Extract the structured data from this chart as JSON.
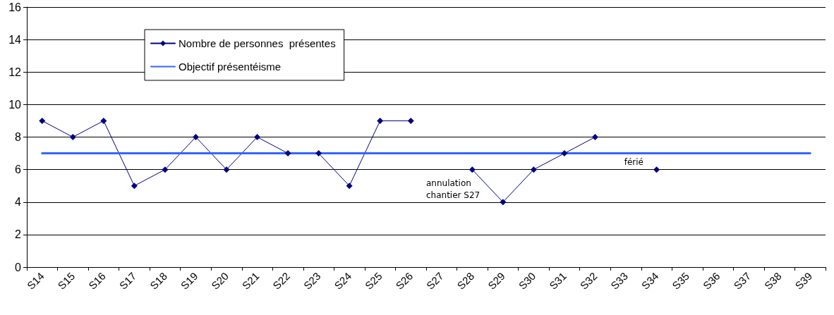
{
  "chart_data": {
    "type": "line",
    "categories": [
      "S14",
      "S15",
      "S16",
      "S17",
      "S18",
      "S19",
      "S20",
      "S21",
      "S22",
      "S23",
      "S24",
      "S25",
      "S26",
      "S27",
      "S28",
      "S29",
      "S30",
      "S31",
      "S32",
      "S33",
      "S34",
      "S35",
      "S36",
      "S37",
      "S38",
      "S39"
    ],
    "series": [
      {
        "name": "Nombre de personnes  présentes",
        "color": "#000080",
        "marker": "diamond",
        "values": [
          9,
          8,
          9,
          5,
          6,
          8,
          6,
          8,
          7,
          7,
          5,
          9,
          9,
          null,
          6,
          4,
          6,
          7,
          8,
          null,
          6,
          null,
          null,
          null,
          null,
          null
        ]
      },
      {
        "name": "Objectif présentéisme",
        "color": "#3366ff",
        "marker": "none",
        "values": [
          7,
          7,
          7,
          7,
          7,
          7,
          7,
          7,
          7,
          7,
          7,
          7,
          7,
          7,
          7,
          7,
          7,
          7,
          7,
          7,
          7,
          7,
          7,
          7,
          7,
          7
        ]
      }
    ],
    "ylim": [
      0,
      16
    ],
    "yticks": [
      0,
      2,
      4,
      6,
      8,
      10,
      12,
      14,
      16
    ],
    "grid": "y",
    "legend": "top left",
    "line_style": "solid",
    "annotations": [
      "annulation chantier S27",
      "férié"
    ]
  }
}
